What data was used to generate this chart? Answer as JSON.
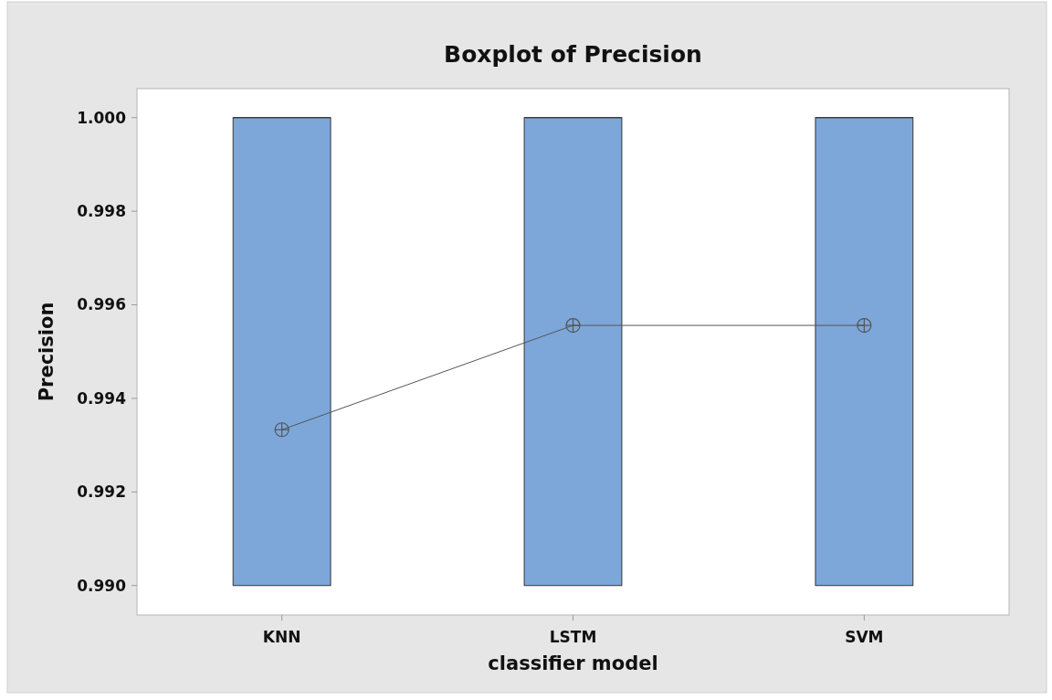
{
  "chart_data": {
    "type": "box",
    "title": "Boxplot of Precision",
    "xlabel": "classifier model",
    "ylabel": "Precision",
    "categories": [
      "KNN",
      "LSTM",
      "SVM"
    ],
    "color": "#7da7d9",
    "boxes": [
      {
        "low": 0.99,
        "q1": 0.99,
        "median": 1.0,
        "q3": 1.0,
        "high": 1.0,
        "mean": 0.99333
      },
      {
        "low": 0.99,
        "q1": 0.99,
        "median": 1.0,
        "q3": 1.0,
        "high": 1.0,
        "mean": 0.99556
      },
      {
        "low": 0.99,
        "q1": 0.99,
        "median": 1.0,
        "q3": 1.0,
        "high": 1.0,
        "mean": 0.99556
      }
    ],
    "ylim": [
      0.98937,
      1.00062
    ],
    "yticks": [
      {
        "value": 0.99,
        "label": "0.990"
      },
      {
        "value": 0.992,
        "label": "0.992"
      },
      {
        "value": 0.994,
        "label": "0.994"
      },
      {
        "value": 0.996,
        "label": "0.996"
      },
      {
        "value": 0.998,
        "label": "0.998"
      },
      {
        "value": 1.0,
        "label": "1.000"
      }
    ],
    "series": [
      {
        "type": "line",
        "x": [
          "KNN",
          "LSTM",
          "SVM"
        ],
        "values": [
          0.99333,
          0.99556,
          0.99556
        ],
        "color": "#555555",
        "marker": "none"
      }
    ],
    "grid": false
  }
}
